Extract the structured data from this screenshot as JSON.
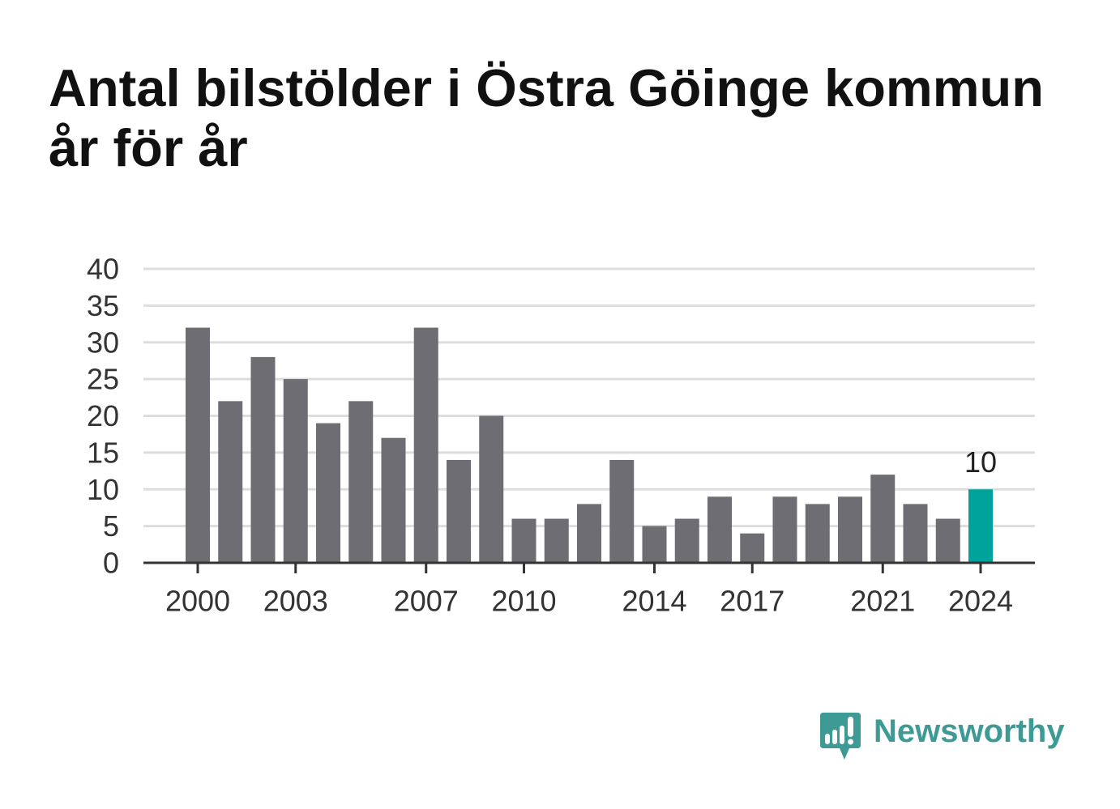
{
  "chart_data": {
    "type": "bar",
    "title": "Antal bilstölder i Östra Göinge kommun år för år",
    "xlabel": "",
    "ylabel": "",
    "categories": [
      "2000",
      "2001",
      "2002",
      "2003",
      "2004",
      "2005",
      "2006",
      "2007",
      "2008",
      "2009",
      "2010",
      "2011",
      "2012",
      "2013",
      "2014",
      "2015",
      "2016",
      "2017",
      "2018",
      "2019",
      "2020",
      "2021",
      "2022",
      "2023",
      "2024"
    ],
    "values": [
      32,
      22,
      28,
      25,
      19,
      22,
      17,
      32,
      14,
      20,
      6,
      6,
      8,
      14,
      5,
      6,
      9,
      4,
      9,
      8,
      9,
      12,
      8,
      6,
      10
    ],
    "x_tick_labels": [
      "2000",
      "2003",
      "2007",
      "2010",
      "2014",
      "2017",
      "2021",
      "2024"
    ],
    "y_ticks": [
      0,
      5,
      10,
      15,
      20,
      25,
      30,
      35,
      40
    ],
    "ylim": [
      0,
      40
    ],
    "grid": true,
    "bar_color": "#6e6d73",
    "grid_color": "#dddddd",
    "axis_color": "#333333",
    "highlight": {
      "category": "2024",
      "color": "#00a39a",
      "data_label": "10"
    }
  },
  "brand": {
    "name": "Newsworthy",
    "color": "#3e9a95",
    "icon": "newsworthy-logo-icon"
  }
}
